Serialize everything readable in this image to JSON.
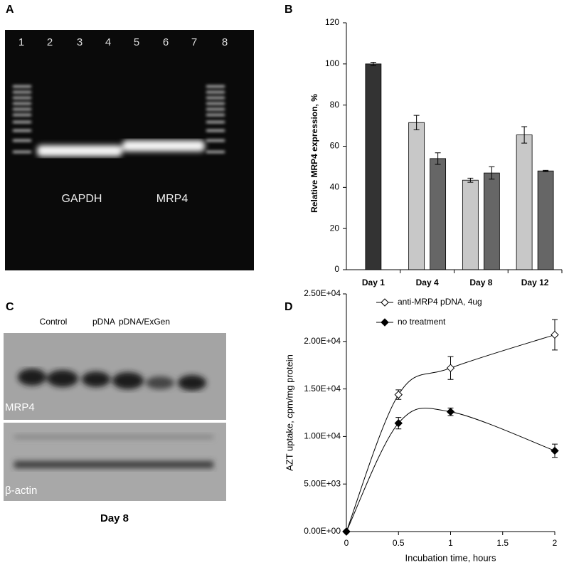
{
  "panel_labels": [
    "A",
    "B",
    "C",
    "D"
  ],
  "gel": {
    "lanes": [
      "1",
      "2",
      "3",
      "4",
      "5",
      "6",
      "7",
      "8"
    ],
    "labels": [
      "GAPDH",
      "MRP4"
    ]
  },
  "blot": {
    "columns": [
      "Control",
      "pDNA",
      "pDNA/ExGen"
    ],
    "bands": [
      "MRP4",
      "β-actin"
    ],
    "caption": "Day 8"
  },
  "chart_data": [
    {
      "type": "bar",
      "y_label": "Relative MRP4 expression, %",
      "categories": [
        "Day 1",
        "Day 4",
        "Day 8",
        "Day 12"
      ],
      "series": [
        {
          "color": "#333333",
          "values": [
            100,
            null,
            null,
            null
          ],
          "errors": [
            0.8,
            null,
            null,
            null
          ]
        },
        {
          "color": "#c8c8c8",
          "values": [
            null,
            71.5,
            43.5,
            65.5
          ],
          "errors": [
            null,
            3.5,
            1,
            4
          ]
        },
        {
          "color": "#666666",
          "values": [
            null,
            54,
            47,
            48
          ],
          "errors": [
            null,
            2.8,
            3,
            0.3
          ]
        }
      ],
      "ylim": [
        0,
        120
      ],
      "yticks": [
        0,
        20,
        40,
        60,
        80,
        100,
        120
      ]
    },
    {
      "type": "line",
      "x_label": "Incubation time, hours",
      "y_label": "AZT uptake, cpm/mg protein",
      "x": [
        0,
        0.5,
        1,
        2
      ],
      "series": [
        {
          "name": "anti-MRP4 pDNA, 4ug",
          "color": "#000000",
          "marker": "open-diamond",
          "values": [
            0,
            14400,
            17200,
            20700
          ],
          "errors": [
            0,
            500,
            1200,
            1600
          ]
        },
        {
          "name": "no treatment",
          "color": "#000000",
          "marker": "filled-diamond",
          "values": [
            0,
            11400,
            12600,
            8500
          ],
          "errors": [
            0,
            600,
            400,
            700
          ]
        }
      ],
      "xlim": [
        0,
        2
      ],
      "xticks": [
        0,
        0.5,
        1,
        1.5,
        2
      ],
      "ylim": [
        0,
        25000
      ],
      "yticks": [
        {
          "value": 0,
          "label": "0.00E+00"
        },
        {
          "value": 5000,
          "label": "5.00E+03"
        },
        {
          "value": 10000,
          "label": "1.00E+04"
        },
        {
          "value": 15000,
          "label": "1.50E+04"
        },
        {
          "value": 20000,
          "label": "2.00E+04"
        },
        {
          "value": 25000,
          "label": "2.50E+04"
        }
      ],
      "legend": "upper left"
    }
  ]
}
